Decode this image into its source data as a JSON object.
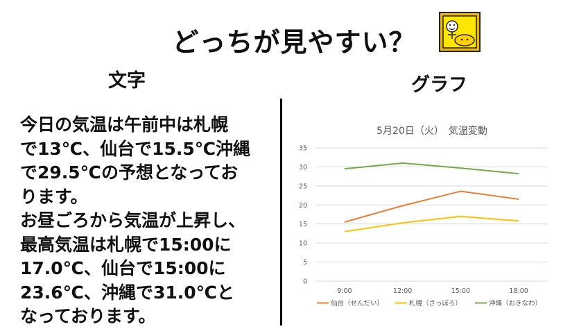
{
  "title": "どっちが見やすい？",
  "left_header": "文字",
  "right_header": "グラフ",
  "body_lines": [
    "今日の気温は午前中は札幌",
    "で13℃、仙台で15.5℃沖縄",
    "で29.5℃の予想となってお",
    "ります。",
    "お昼ごろから気温が上昇し、",
    "最高気温は札幌で15:00に",
    "17.0℃、仙台で15:00に",
    "23.6℃、沖縄で31.0℃と",
    "なっております。"
  ],
  "colors": {
    "sendai": "#ed7d31",
    "sapporo": "#ffc000",
    "okinawa": "#70ad47",
    "badge_frame": "#f2b705",
    "badge_face": "#ffe600"
  },
  "chart_data": {
    "type": "line",
    "title": "5月20日（火）　気温変動",
    "categories": [
      "9:00",
      "12:00",
      "15:00",
      "18:00"
    ],
    "ylim": [
      0,
      35
    ],
    "yticks": [
      "0",
      "5",
      "10",
      "15",
      "20",
      "25",
      "30",
      "35"
    ],
    "grid": true,
    "legend_position": "bottom",
    "series": [
      {
        "name": "仙台（せんだい）",
        "values": [
          15.5,
          19.8,
          23.6,
          21.5
        ],
        "color": "#ed7d31"
      },
      {
        "name": "札幌（さっぽろ）",
        "values": [
          13.0,
          15.3,
          17.0,
          15.8
        ],
        "color": "#ffc000"
      },
      {
        "name": "沖縄（おきなわ）",
        "values": [
          29.5,
          31.0,
          29.7,
          28.2
        ],
        "color": "#70ad47"
      }
    ]
  }
}
